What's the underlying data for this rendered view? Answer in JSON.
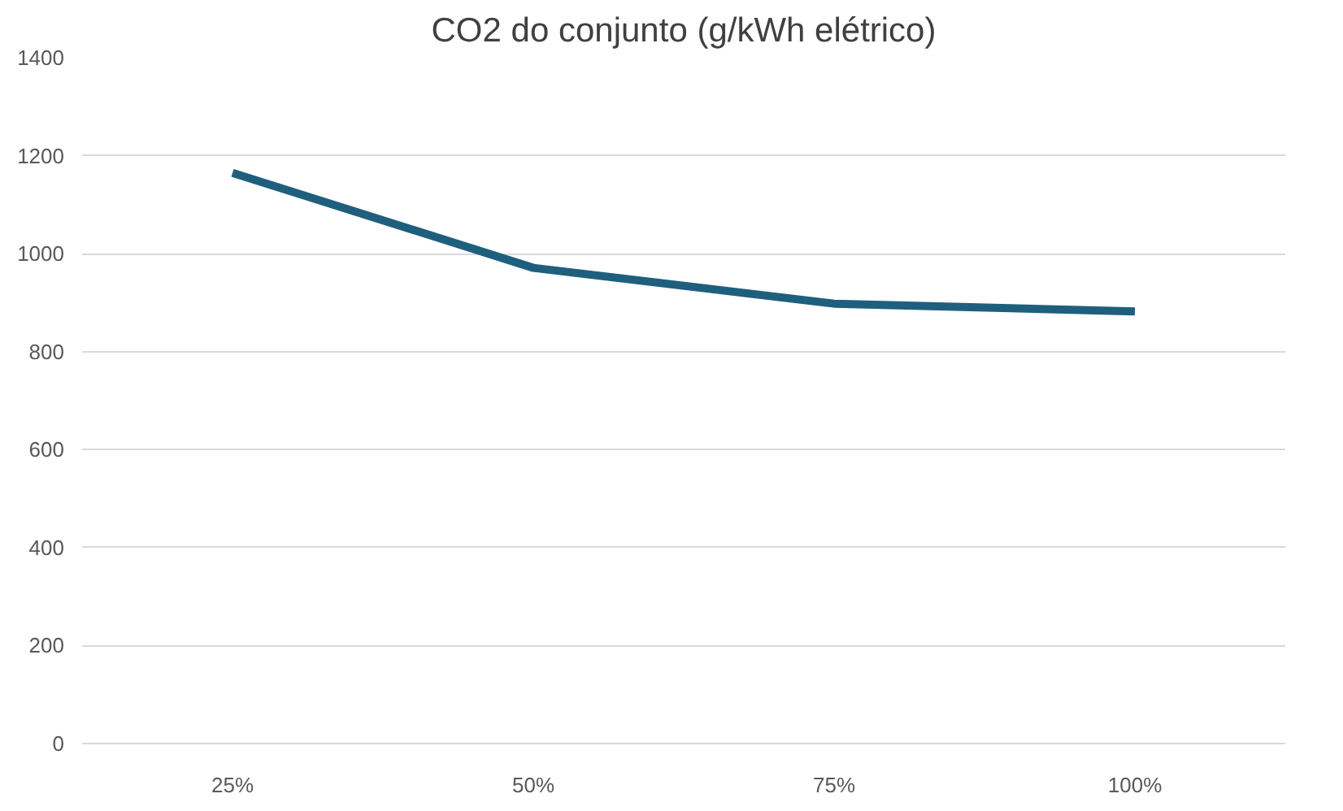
{
  "chart_data": {
    "type": "line",
    "title": "CO2 do conjunto (g/kWh elétrico)",
    "categories": [
      "25%",
      "50%",
      "75%",
      "100%"
    ],
    "series": [
      {
        "color": "#1f5f7e",
        "values": [
          1165,
          971,
          898,
          882
        ]
      }
    ],
    "ylim": [
      0,
      1400
    ],
    "yticks": [
      0,
      200,
      400,
      600,
      800,
      1000,
      1200,
      1400
    ],
    "grid": "y",
    "marker": "none",
    "line_style": "solid"
  }
}
